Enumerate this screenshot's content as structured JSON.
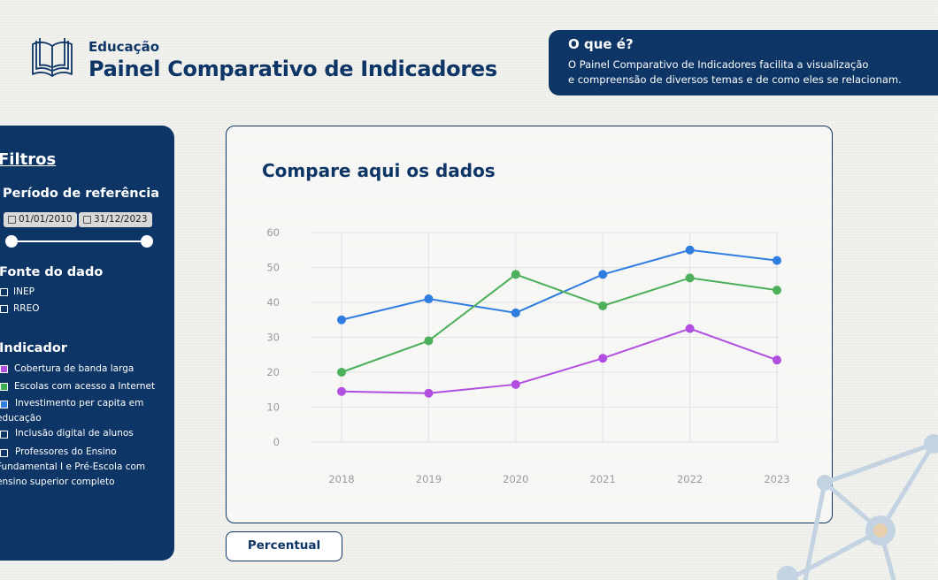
{
  "header": {
    "subtitle": "Educação",
    "title": "Painel Comparativo de Indicadores",
    "logo_icon": "open-book-icon"
  },
  "info": {
    "title": "O que é?",
    "line1": "O Painel Comparativo de Indicadores facilita a visualização",
    "line2": "e compreensão de diversos temas e de como eles se relacionam."
  },
  "sidebar": {
    "title": "Filtros",
    "period": {
      "title": "Período de referência",
      "start": "01/01/2010",
      "end": "31/12/2023"
    },
    "source": {
      "title": "Fonte do dado",
      "options": [
        "INEP",
        "RREO"
      ]
    },
    "indicator": {
      "title": "Indicador",
      "options": [
        {
          "line1": "Cobertura de banda larga",
          "line2": "",
          "line3": "",
          "color": "#b14ee0"
        },
        {
          "line1": "Escolas com acesso a Internet",
          "line2": "",
          "line3": "",
          "color": "#3fae4f"
        },
        {
          "line1": "Investimento per capita em",
          "line2": "educação",
          "line3": "",
          "color": "#2f7de1"
        },
        {
          "line1": "Inclusão digital de alunos",
          "line2": "",
          "line3": "",
          "color": ""
        },
        {
          "line1": "Professores do Ensino",
          "line2": "Fundamental I e Pré-Escola com",
          "line3": "ensino superior completo",
          "color": ""
        }
      ]
    }
  },
  "card": {
    "title": "Compare aqui os dados"
  },
  "chart_data": {
    "type": "line",
    "title": "",
    "xlabel": "",
    "ylabel": "",
    "x": [
      "2018",
      "2019",
      "2020",
      "2021",
      "2022",
      "2023"
    ],
    "yticks": [
      "0",
      "10",
      "20",
      "30",
      "40",
      "50",
      "60"
    ],
    "ylim": [
      0,
      60
    ],
    "grid": true,
    "legend": "none",
    "series": [
      {
        "color": "#2f7de1",
        "values": [
          35,
          41,
          37,
          48,
          55,
          52
        ]
      },
      {
        "color": "#4caf5a",
        "values": [
          20,
          29,
          48,
          39,
          47,
          43.5
        ]
      },
      {
        "color": "#b14ee0",
        "values": [
          14.5,
          14,
          16.5,
          24,
          32.5,
          23.5
        ]
      }
    ]
  },
  "units_button": {
    "label": "Percentual"
  }
}
